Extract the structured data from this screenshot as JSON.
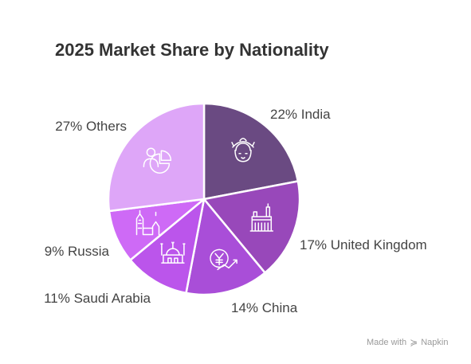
{
  "chart_data": {
    "type": "pie",
    "title": "2025 Market Share by Nationality",
    "slices": [
      {
        "label": "22% India",
        "name": "India",
        "value": 22,
        "color": "#6a4a82",
        "icon": "woman-with-headdress-icon"
      },
      {
        "label": "17% United Kingdom",
        "name": "United Kingdom",
        "value": 17,
        "color": "#9848ba",
        "icon": "parliament-building-icon"
      },
      {
        "label": "14% China",
        "name": "China",
        "value": 14,
        "color": "#a94ed8",
        "icon": "yuan-growth-icon"
      },
      {
        "label": "11% Saudi Arabia",
        "name": "Saudi Arabia",
        "value": 11,
        "color": "#bb55eb",
        "icon": "mosque-icon"
      },
      {
        "label": "9% Russia",
        "name": "Russia",
        "value": 9,
        "color": "#ce6af6",
        "icon": "kremlin-towers-icon"
      },
      {
        "label": "27% Others",
        "name": "Others",
        "value": 27,
        "color": "#dea6f8",
        "icon": "people-pie-icon"
      }
    ]
  },
  "watermark": {
    "text": "Made with",
    "brand": "Napkin"
  }
}
